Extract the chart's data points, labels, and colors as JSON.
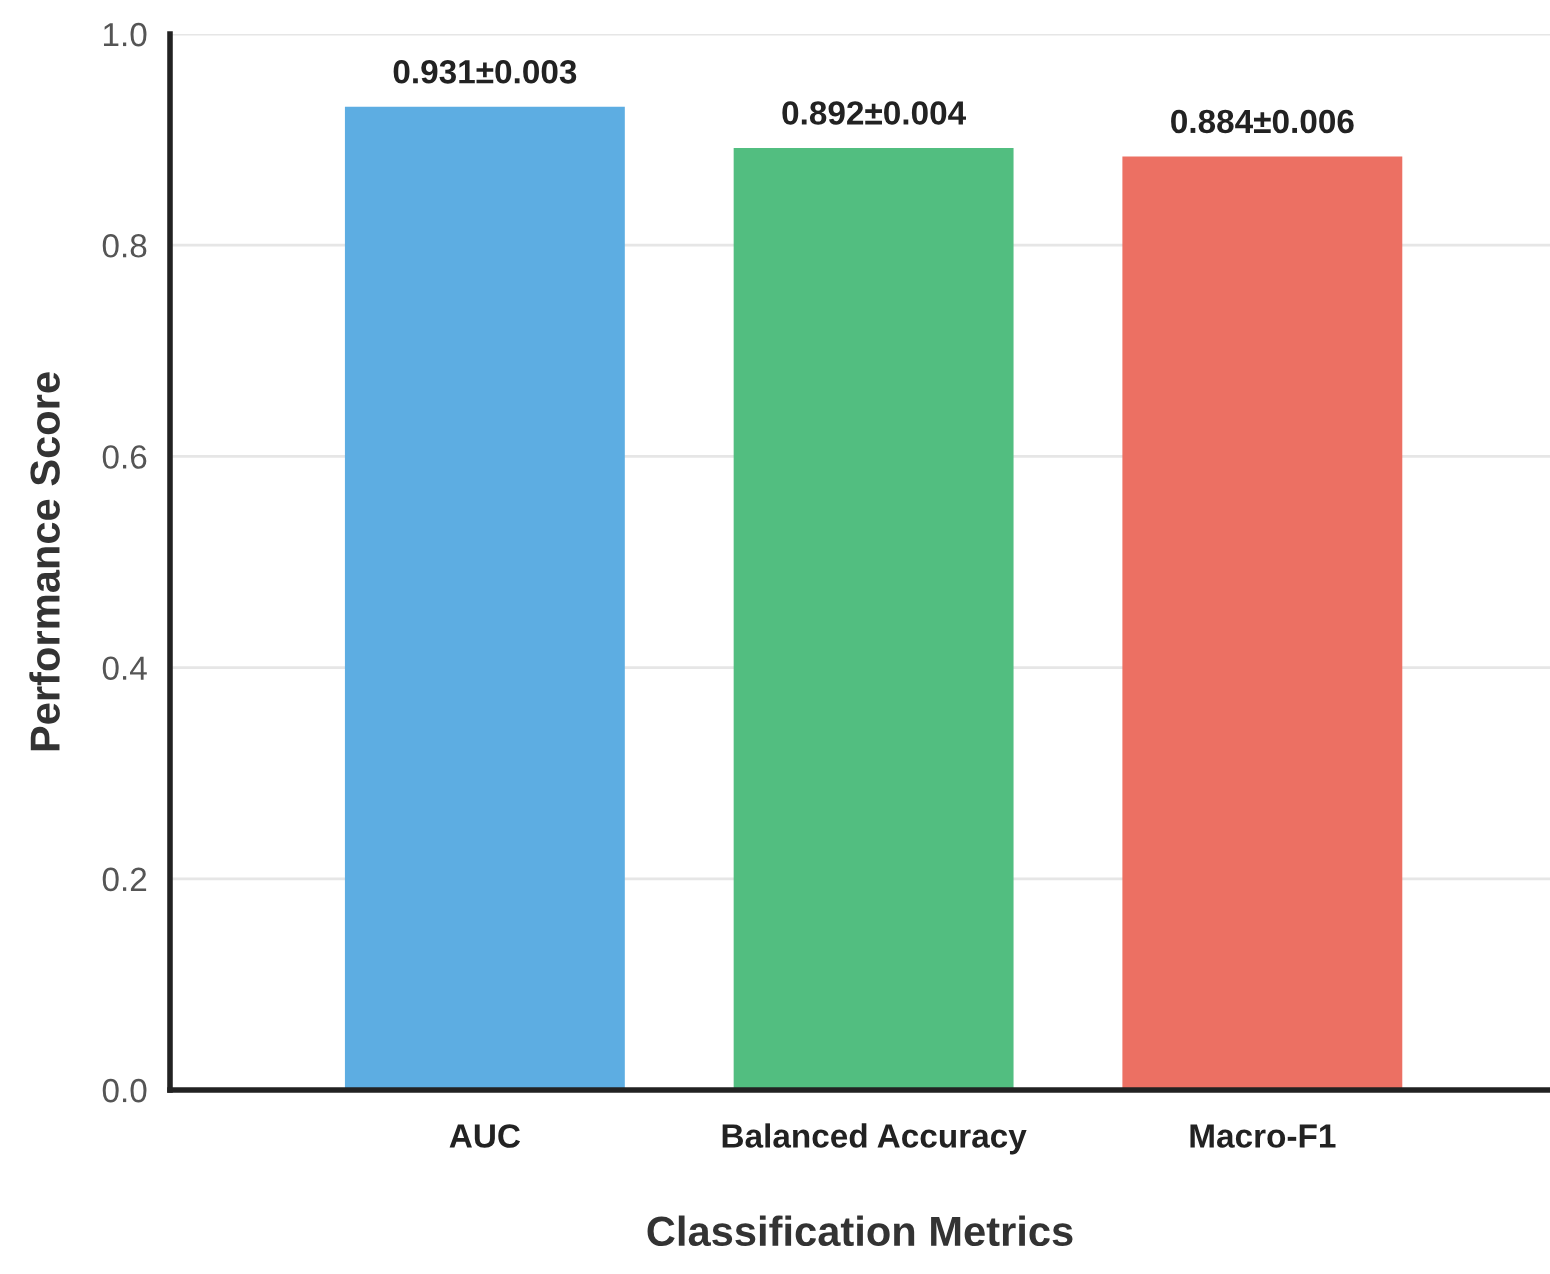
{
  "chart_data": {
    "type": "bar",
    "xlabel": "Classification Metrics",
    "ylabel": "Performance Score",
    "categories": [
      "AUC",
      "Balanced Accuracy",
      "Macro-F1"
    ],
    "values": [
      0.931,
      0.892,
      0.884
    ],
    "colors": [
      "#5dade2",
      "#52be80",
      "#ec7063"
    ],
    "value_labels": [
      "0.931±0.003",
      "0.892±0.004",
      "0.884±0.006"
    ],
    "ylim": [
      0,
      1.0
    ],
    "yticks": [
      {
        "value": 0,
        "label": "0.0"
      },
      0.2,
      0.4,
      0.6,
      0.8,
      {
        "value": 1,
        "label": "1.0"
      }
    ],
    "grid": "y",
    "legend": false
  }
}
